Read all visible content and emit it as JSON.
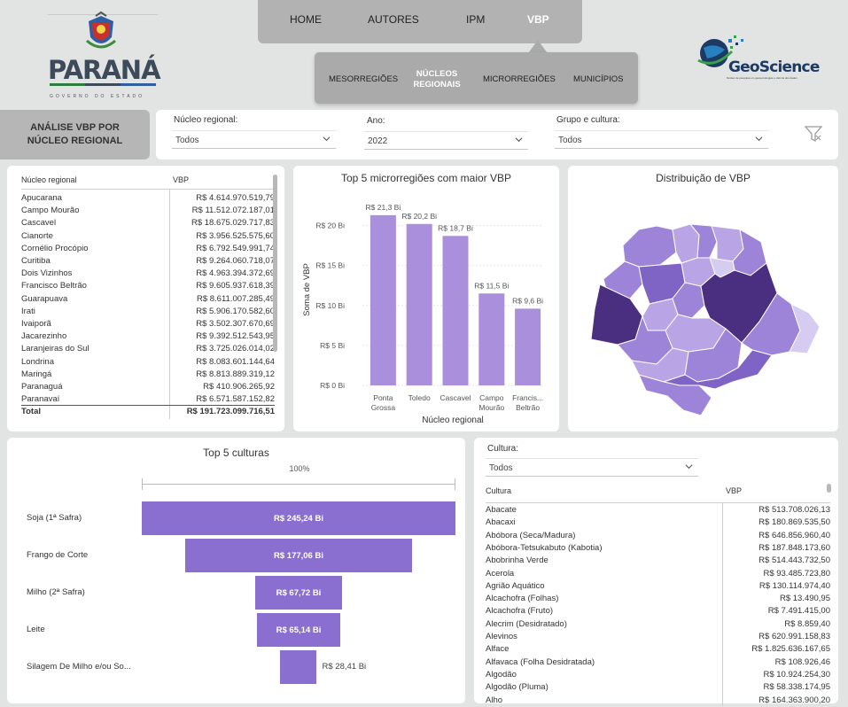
{
  "header": {
    "logo_left_name": "PARANÁ",
    "logo_left_sub": "GOVERNO DO ESTADO",
    "logo_right_name": "GeoScience",
    "logo_right_sub": "Núcleo de pesquisa em geotecnologias e ciência dos dados",
    "nav_top": [
      "HOME",
      "AUTORES",
      "IPM",
      "VBP"
    ],
    "nav_top_active": "VBP",
    "nav_sub": [
      "MESORREGIÕES",
      "NÚCLEOS REGIONAIS",
      "MICRORREGIÕES",
      "MUNICÍPIOS"
    ],
    "nav_sub_active": "NÚCLEOS REGIONAIS"
  },
  "title": "ANÁLISE VBP POR NÚCLEO REGIONAL",
  "filters": {
    "nucleo_label": "Núcleo regional:",
    "nucleo_value": "Todos",
    "ano_label": "Ano:",
    "ano_value": "2022",
    "grupo_label": "Grupo e cultura:",
    "grupo_value": "Todos"
  },
  "nucleo_table": {
    "col_name": "Núcleo regional",
    "col_value": "VBP",
    "rows": [
      {
        "name": "Apucarana",
        "value": "R$ 4.614.970.519,79"
      },
      {
        "name": "Campo Mourão",
        "value": "R$ 11.512.072.187,01"
      },
      {
        "name": "Cascavel",
        "value": "R$ 18.675.029.717,83"
      },
      {
        "name": "Cianorte",
        "value": "R$ 3.956.525.575,60"
      },
      {
        "name": "Cornélio Procópio",
        "value": "R$ 6.792.549.991,74"
      },
      {
        "name": "Curitiba",
        "value": "R$ 9.264.060.718,07"
      },
      {
        "name": "Dois Vizinhos",
        "value": "R$ 4.963.394.372,69"
      },
      {
        "name": "Francisco Beltrão",
        "value": "R$ 9.605.937.618,39"
      },
      {
        "name": "Guarapuava",
        "value": "R$ 8.611.007.285,49"
      },
      {
        "name": "Irati",
        "value": "R$ 5.906.170.582,60"
      },
      {
        "name": "Ivaiporã",
        "value": "R$ 3.502.307.670,69"
      },
      {
        "name": "Jacarezinho",
        "value": "R$ 9.392.512.543,95"
      },
      {
        "name": "Laranjeiras do Sul",
        "value": "R$ 3.725.026.014,02"
      },
      {
        "name": "Londrina",
        "value": "R$ 8.083.601.144,64"
      },
      {
        "name": "Maringá",
        "value": "R$ 8.813.889.319,12"
      },
      {
        "name": "Paranaguá",
        "value": "R$ 410.906.265,92"
      },
      {
        "name": "Paranavaí",
        "value": "R$ 6.571.587.152,82"
      }
    ],
    "total_label": "Total",
    "total_value": "R$ 191.723.099.716,51"
  },
  "chart_data": [
    {
      "type": "bar",
      "title": "Top 5 microrregiões com maior VBP",
      "xlabel": "Núcleo regional",
      "ylabel": "Soma de VBP",
      "categories": [
        [
          "Ponta",
          "Grossa"
        ],
        [
          "Toledo"
        ],
        [
          "Cascavel"
        ],
        [
          "Campo",
          "Mourão"
        ],
        [
          "Francis...",
          "Beltrão"
        ]
      ],
      "values": [
        21.3,
        20.2,
        18.7,
        11.5,
        9.6
      ],
      "data_labels": [
        "R$ 21,3 Bi",
        "R$ 20,2 Bi",
        "R$ 18,7 Bi",
        "R$ 11,5 Bi",
        "R$ 9,6 Bi"
      ],
      "yticks": [
        "R$ 0 Bi",
        "R$ 5 Bi",
        "R$ 10 Bi",
        "R$ 15 Bi",
        "R$ 20 Bi"
      ],
      "ylim": [
        0,
        23.5
      ],
      "grid": true,
      "color": "#a98fdc"
    },
    {
      "type": "bar",
      "title": "Top 5 culturas",
      "top_label": "100%",
      "categories": [
        "Soja (1ª Safra)",
        "Frango de Corte",
        "Milho (2ª Safra)",
        "Leite",
        "Silagem De Milho e/ou So..."
      ],
      "values": [
        245.24,
        177.06,
        67.72,
        65.14,
        28.41
      ],
      "data_labels": [
        "R$ 245,24 Bi",
        "R$ 177,06 Bi",
        "R$ 67,72 Bi",
        "R$ 65,14 Bi",
        "R$ 28,41 Bi"
      ],
      "color": "#8b6fd0"
    }
  ],
  "map": {
    "title": "Distribuição de VBP",
    "colors": [
      "#d6cbf0",
      "#b9a5e6",
      "#9d84d8",
      "#7f63c5",
      "#4a2f80"
    ]
  },
  "cultura": {
    "filter_label": "Cultura:",
    "filter_value": "Todos",
    "col_name": "Cultura",
    "col_value": "VBP",
    "rows": [
      {
        "name": "Abacate",
        "value": "R$ 513.708.026,13"
      },
      {
        "name": "Abacaxi",
        "value": "R$ 180.869.535,50"
      },
      {
        "name": "Abóbora (Seca/Madura)",
        "value": "R$ 646.856.960,40"
      },
      {
        "name": "Abóbora-Tetsukabuto (Kabotia)",
        "value": "R$ 187.848.173,60"
      },
      {
        "name": "Abobrinha Verde",
        "value": "R$ 514.443.732,50"
      },
      {
        "name": "Acerola",
        "value": "R$ 93.485.723,80"
      },
      {
        "name": "Agrião Aquático",
        "value": "R$ 130.114.974,40"
      },
      {
        "name": "Alcachofra (Folhas)",
        "value": "R$ 13.490,95"
      },
      {
        "name": "Alcachofra (Fruto)",
        "value": "R$ 7.491.415,00"
      },
      {
        "name": "Alecrim (Desidratado)",
        "value": "R$ 8.859,40"
      },
      {
        "name": "Alevinos",
        "value": "R$ 620.991.158,83"
      },
      {
        "name": "Alface",
        "value": "R$ 1.825.636.167,65"
      },
      {
        "name": "Alfavaca (Folha Desidratada)",
        "value": "R$ 108.926,46"
      },
      {
        "name": "Algodão",
        "value": "R$ 10.924.254,30"
      },
      {
        "name": "Algodão (Pluma)",
        "value": "R$ 58.338.174,95"
      },
      {
        "name": "Alho",
        "value": "R$ 164.363.900,20"
      }
    ]
  }
}
